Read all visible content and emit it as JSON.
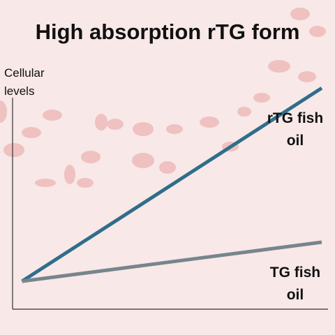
{
  "chart_data": {
    "type": "line",
    "title": "High absorption rTG form",
    "y_label": "Cellular levels",
    "x": [
      0.03,
      0.98
    ],
    "xlim": [
      0,
      1
    ],
    "ylim": [
      0,
      100
    ],
    "series": [
      {
        "name": "rTG fish oil",
        "color": "#2f6e8c",
        "values": [
          12.5,
          99
        ]
      },
      {
        "name": "TG fish oil",
        "color": "#77858d",
        "values": [
          12.5,
          30
        ]
      }
    ]
  }
}
